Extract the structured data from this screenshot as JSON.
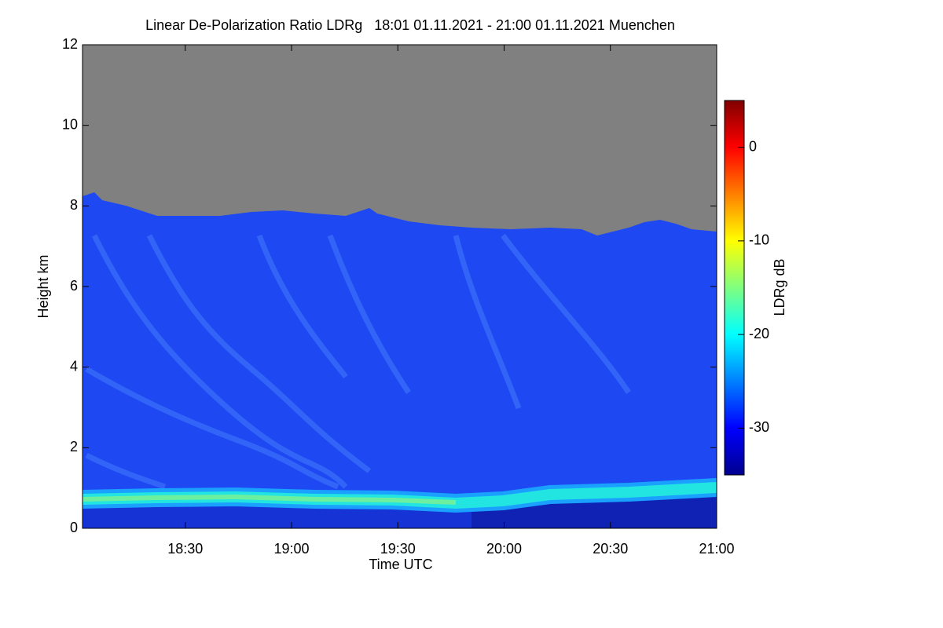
{
  "chart_data": {
    "type": "heatmap",
    "title": "Linear De-Polarization Ratio LDRg   18:01 01.11.2021 - 21:00 01.11.2021 Muenchen",
    "x_label": "Time UTC",
    "y_label": "Height km",
    "xlim": [
      18.0167,
      21.0
    ],
    "xticks": [
      {
        "value": 18.5,
        "label": "18:30"
      },
      {
        "value": 19.0,
        "label": "19:00"
      },
      {
        "value": 19.5,
        "label": "19:30"
      },
      {
        "value": 20.0,
        "label": "20:00"
      },
      {
        "value": 20.5,
        "label": "20:30"
      },
      {
        "value": 21.0,
        "label": "21:00"
      }
    ],
    "ylim": [
      0,
      12
    ],
    "yticks": [
      0,
      2,
      4,
      6,
      8,
      10,
      12
    ],
    "colorbar": {
      "label": "LDRg dB",
      "lim": [
        -35,
        5
      ],
      "ticks": [
        -30,
        -20,
        -10,
        0
      ],
      "colormap": "jet"
    }
  }
}
